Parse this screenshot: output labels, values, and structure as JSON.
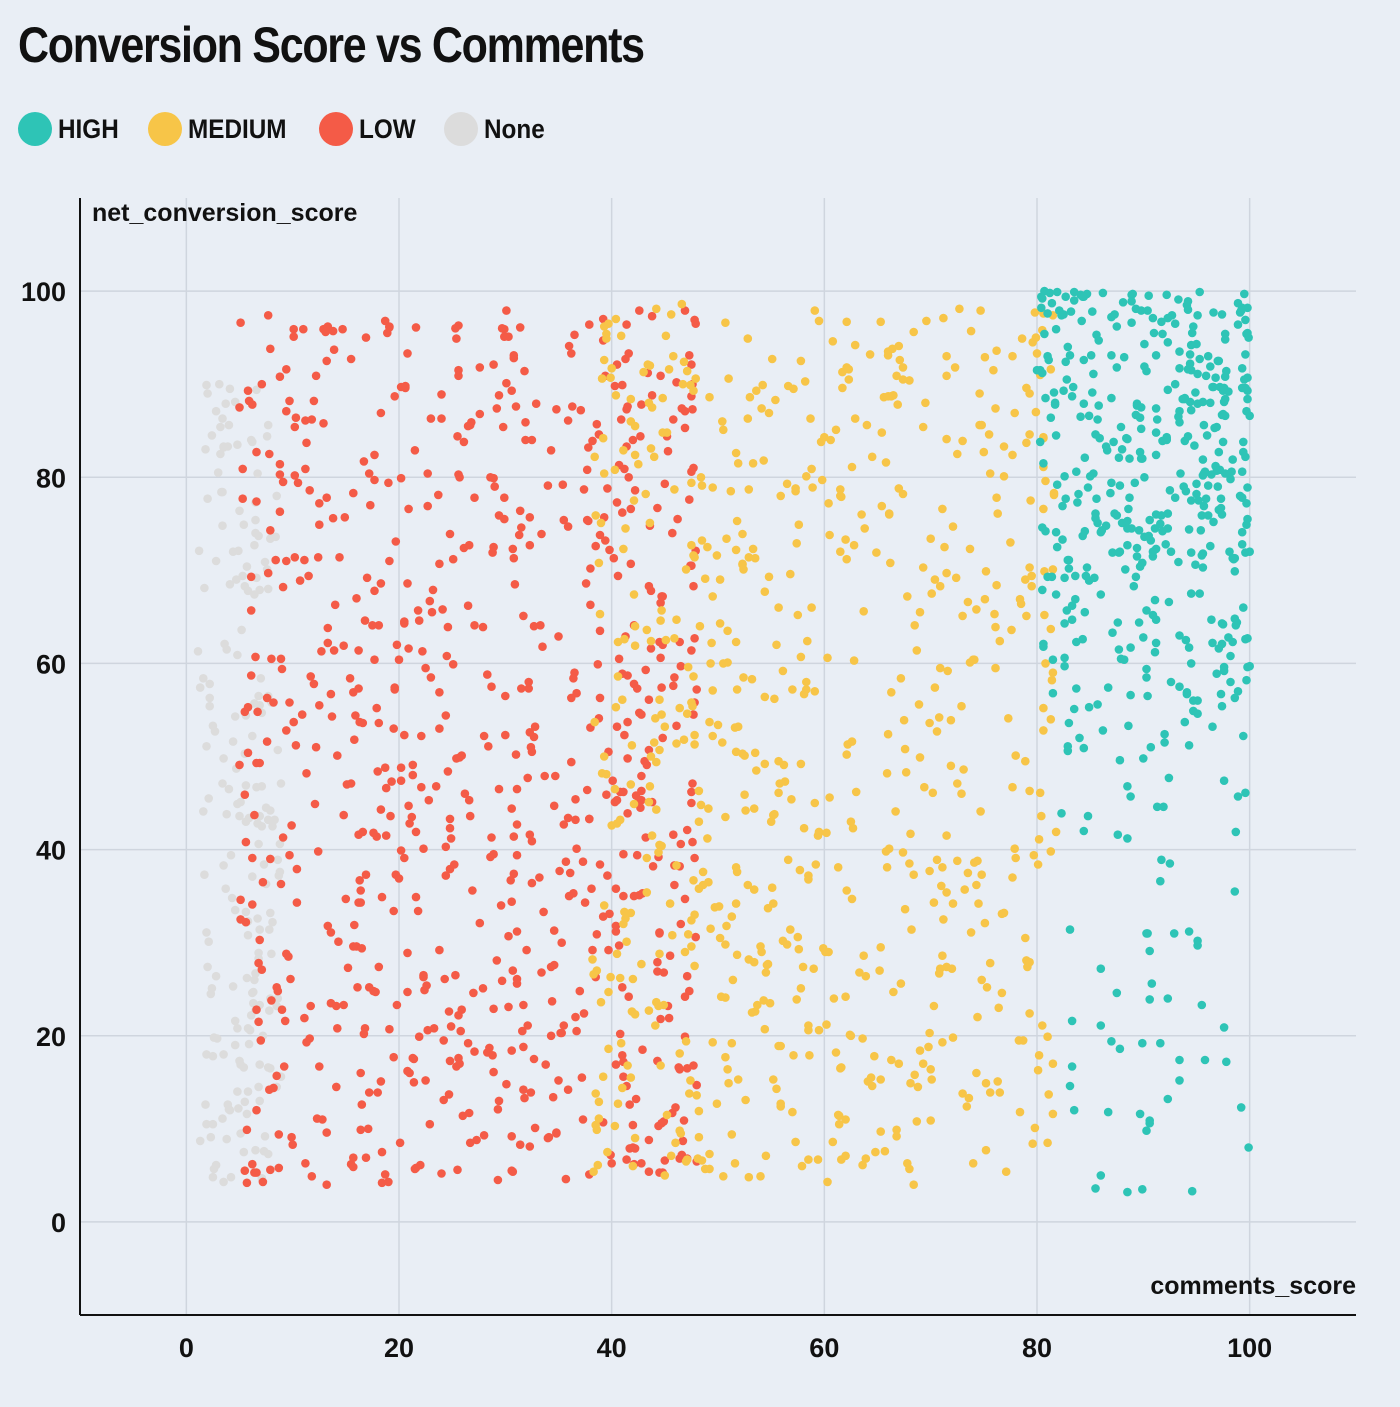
{
  "chart_data": {
    "type": "scatter",
    "title": "Conversion Score vs Comments",
    "xlabel": "comments_score",
    "ylabel": "net_conversion_score",
    "xlim": [
      -10,
      110
    ],
    "ylim": [
      -10,
      110
    ],
    "xticks": [
      "0",
      "20",
      "40",
      "60",
      "80",
      "100"
    ],
    "yticks": [
      "0",
      "20",
      "40",
      "60",
      "80",
      "100"
    ],
    "grid": true,
    "legend_position": "top-left",
    "series": [
      {
        "name": "HIGH",
        "color": "#2ec4b6",
        "x": [],
        "y": []
      },
      {
        "name": "MEDIUM",
        "color": "#f7c548",
        "x": [],
        "y": []
      },
      {
        "name": "LOW",
        "color": "#f45b47",
        "x": [],
        "y": []
      },
      {
        "name": "None",
        "color": "#dcdcdc",
        "x": [],
        "y": []
      }
    ],
    "generation": {
      "HIGH": [
        [
          80,
          100,
          48,
          100,
          1.2,
          430
        ],
        [
          82,
          100,
          3,
          50,
          1.0,
          60
        ]
      ],
      "MEDIUM": [
        [
          38,
          82,
          4,
          99,
          1.0,
          720
        ]
      ],
      "LOW": [
        [
          5,
          48,
          4,
          98,
          1.2,
          790
        ]
      ],
      "None": [
        [
          1,
          9,
          4,
          90,
          1.0,
          200
        ]
      ]
    }
  }
}
